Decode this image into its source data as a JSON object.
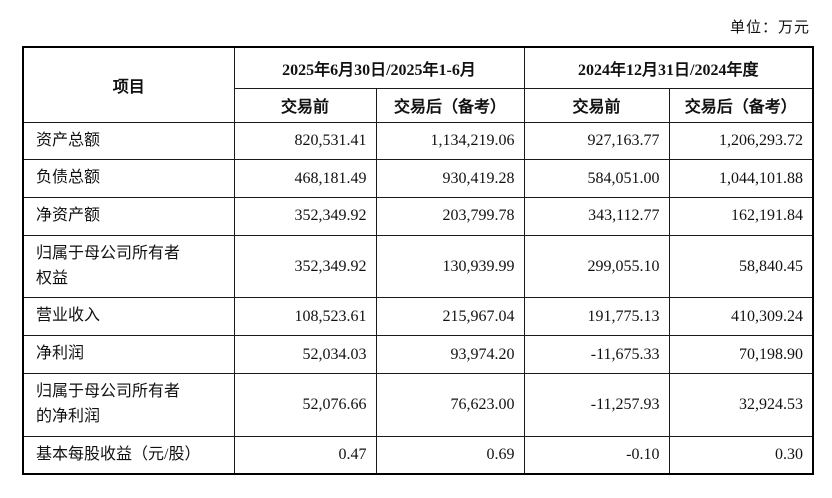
{
  "unit_label": "单位：万元",
  "table": {
    "item_header": "项目",
    "col_groups": [
      {
        "label": "2025年6月30日/2025年1-6月",
        "sub": [
          "交易前",
          "交易后（备考）"
        ]
      },
      {
        "label": "2024年12月31日/2024年度",
        "sub": [
          "交易前",
          "交易后（备考）"
        ]
      }
    ],
    "rows": [
      {
        "label": "资产总额",
        "values": [
          "820,531.41",
          "1,134,219.06",
          "927,163.77",
          "1,206,293.72"
        ]
      },
      {
        "label": "负债总额",
        "values": [
          "468,181.49",
          "930,419.28",
          "584,051.00",
          "1,044,101.88"
        ]
      },
      {
        "label": "净资产额",
        "values": [
          "352,349.92",
          "203,799.78",
          "343,112.77",
          "162,191.84"
        ]
      },
      {
        "label": "归属于母公司所有者\n权益",
        "values": [
          "352,349.92",
          "130,939.99",
          "299,055.10",
          "58,840.45"
        ]
      },
      {
        "label": "营业收入",
        "values": [
          "108,523.61",
          "215,967.04",
          "191,775.13",
          "410,309.24"
        ]
      },
      {
        "label": "净利润",
        "values": [
          "52,034.03",
          "93,974.20",
          "-11,675.33",
          "70,198.90"
        ]
      },
      {
        "label": "归属于母公司所有者\n的净利润",
        "values": [
          "52,076.66",
          "76,623.00",
          "-11,257.93",
          "32,924.53"
        ]
      },
      {
        "label": "基本每股收益（元/股）",
        "values": [
          "0.47",
          "0.69",
          "-0.10",
          "0.30"
        ]
      }
    ]
  },
  "colors": {
    "text": "#111111",
    "border": "#1a1a1a",
    "background": "#ffffff"
  }
}
